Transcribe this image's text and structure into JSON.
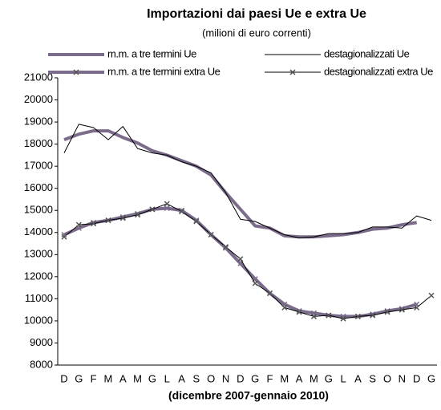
{
  "chart_data": {
    "type": "line",
    "title": "Importazioni dai paesi Ue e extra Ue",
    "subtitle": "(milioni di euro correnti)",
    "x_label": "(dicembre 2007-gennaio 2010)",
    "categories": [
      "D",
      "G",
      "F",
      "M",
      "A",
      "M",
      "G",
      "L",
      "A",
      "S",
      "O",
      "N",
      "D",
      "G",
      "F",
      "M",
      "A",
      "M",
      "G",
      "L",
      "A",
      "S",
      "O",
      "N",
      "D",
      "G"
    ],
    "ylim": [
      8000,
      21000
    ],
    "yticks": [
      8000,
      9000,
      10000,
      11000,
      12000,
      13000,
      14000,
      15000,
      16000,
      17000,
      18000,
      19000,
      20000,
      21000
    ],
    "grid": false,
    "series": [
      {
        "name": "m.m. a tre termini Ue",
        "color": "#7b6c8c",
        "width": 4,
        "marker": null,
        "values": [
          18200,
          18450,
          18600,
          18600,
          18300,
          18050,
          17700,
          17500,
          17250,
          17000,
          16600,
          15800,
          15050,
          14300,
          14200,
          13850,
          13800,
          13800,
          13850,
          13900,
          14000,
          14150,
          14200,
          14350,
          14450,
          null
        ]
      },
      {
        "name": "destagionalizzati Ue",
        "color": "#000000",
        "width": 1,
        "marker": null,
        "values": [
          17600,
          18900,
          18750,
          18200,
          18800,
          17800,
          17600,
          17500,
          17200,
          17000,
          16700,
          15800,
          14600,
          14500,
          14200,
          13900,
          13750,
          13800,
          13950,
          13950,
          14000,
          14250,
          14250,
          14200,
          14750,
          14550
        ]
      },
      {
        "name": "m.m. a tre termini extra Ue",
        "color": "#7b6c8c",
        "width": 4,
        "marker": "x",
        "values": [
          13900,
          14200,
          14450,
          14550,
          14700,
          14850,
          15050,
          15100,
          15000,
          14550,
          13900,
          13300,
          12600,
          11900,
          11250,
          10750,
          10450,
          10350,
          10250,
          10200,
          10200,
          10300,
          10450,
          10550,
          10750,
          null
        ]
      },
      {
        "name": "destagionalizzati extra Ue",
        "color": "#000000",
        "width": 1,
        "marker": "x",
        "values": [
          13800,
          14350,
          14400,
          14550,
          14650,
          14800,
          15050,
          15300,
          14950,
          14500,
          13900,
          13350,
          12800,
          11700,
          11250,
          10600,
          10400,
          10200,
          10250,
          10100,
          10200,
          10250,
          10400,
          10500,
          10600,
          11150
        ]
      }
    ]
  }
}
